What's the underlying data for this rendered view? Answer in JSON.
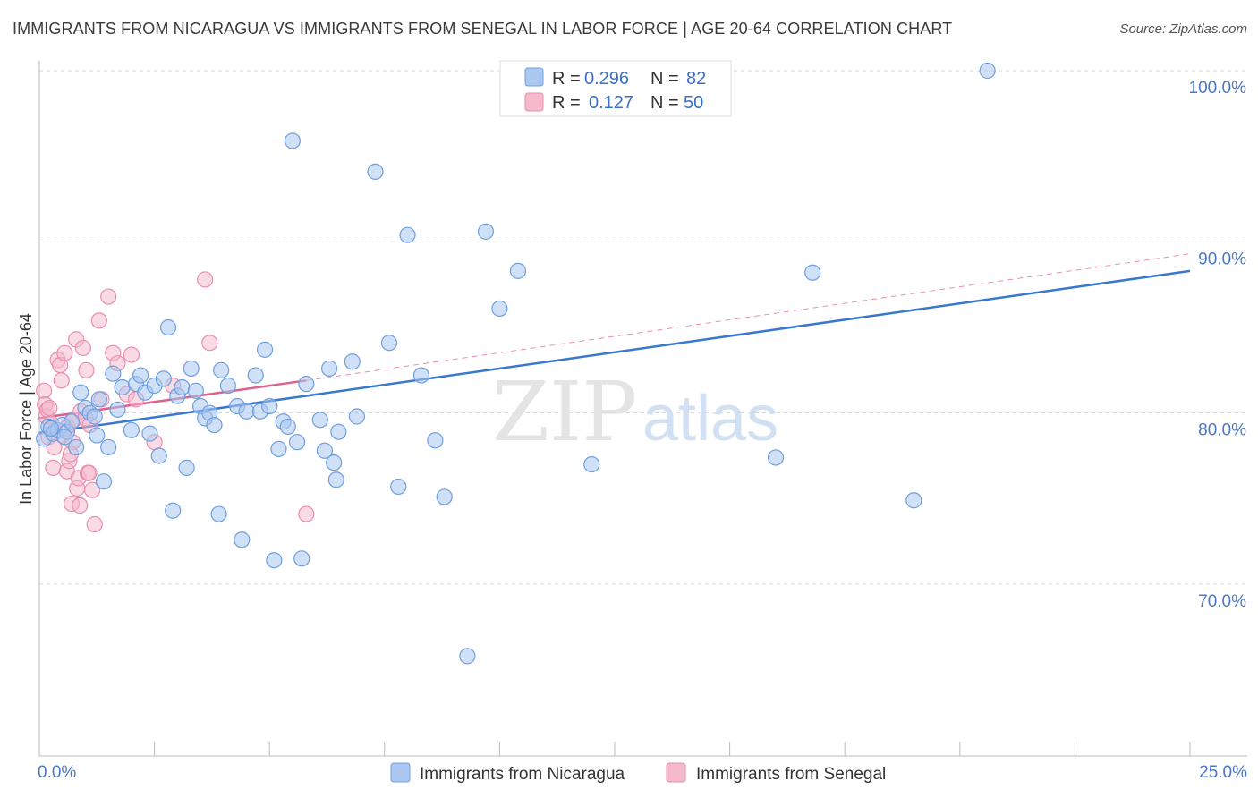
{
  "title": "IMMIGRANTS FROM NICARAGUA VS IMMIGRANTS FROM SENEGAL IN LABOR FORCE | AGE 20-64 CORRELATION CHART",
  "source": "Source: ZipAtlas.com",
  "watermark": {
    "zip": "ZIP",
    "atlas": "atlas"
  },
  "colors": {
    "blue_fill": "#aac8f0",
    "blue_stroke": "#6f9fe0",
    "blue_line": "#3a78d0",
    "pink_fill": "#f6b8cb",
    "pink_stroke": "#e98fab",
    "pink_line": "#e0608c",
    "tick_text": "#4a78c8",
    "grid": "#d8d8d8"
  },
  "legend": {
    "r_label": "R =",
    "n_label": "N =",
    "entries": [
      {
        "series": "Immigrants from Nicaragua",
        "r": "0.296",
        "n": "82"
      },
      {
        "series": "Immigrants from Senegal",
        "r": "0.127",
        "n": "50"
      }
    ]
  },
  "chart_data": {
    "type": "scatter",
    "title": "IMMIGRANTS FROM NICARAGUA VS IMMIGRANTS FROM SENEGAL IN LABOR FORCE | AGE 20-64 CORRELATION CHART",
    "xlabel": "",
    "ylabel": "In Labor Force | Age 20-64",
    "xlim": [
      0.0,
      25.0
    ],
    "ylim": [
      60.0,
      102.0
    ],
    "x_tick_labels": [
      "0.0%",
      "25.0%"
    ],
    "y_ticks": [
      {
        "value": 100,
        "label": "100.0%"
      },
      {
        "value": 90,
        "label": "90.0%"
      },
      {
        "value": 80,
        "label": "80.0%"
      },
      {
        "value": 70,
        "label": "70.0%"
      }
    ],
    "legend_position": "top-center",
    "series": [
      {
        "name": "Immigrants from Nicaragua",
        "color": "blue",
        "points": [
          [
            0.1,
            78.5
          ],
          [
            0.2,
            79.2
          ],
          [
            0.3,
            78.8
          ],
          [
            0.4,
            79.0
          ],
          [
            0.5,
            79.3
          ],
          [
            0.6,
            78.9
          ],
          [
            0.7,
            79.5
          ],
          [
            0.8,
            78.0
          ],
          [
            0.9,
            81.2
          ],
          [
            1.0,
            80.3
          ],
          [
            1.1,
            80.0
          ],
          [
            1.2,
            79.8
          ],
          [
            1.3,
            80.8
          ],
          [
            1.4,
            76.0
          ],
          [
            1.5,
            78.0
          ],
          [
            1.6,
            82.3
          ],
          [
            1.7,
            80.2
          ],
          [
            1.8,
            81.5
          ],
          [
            2.0,
            79.0
          ],
          [
            2.1,
            81.7
          ],
          [
            2.2,
            82.2
          ],
          [
            2.3,
            81.2
          ],
          [
            2.4,
            78.8
          ],
          [
            2.5,
            81.6
          ],
          [
            2.6,
            77.5
          ],
          [
            2.7,
            82.0
          ],
          [
            2.8,
            85.0
          ],
          [
            2.9,
            74.3
          ],
          [
            3.0,
            81.0
          ],
          [
            3.1,
            81.5
          ],
          [
            3.2,
            76.8
          ],
          [
            3.3,
            82.6
          ],
          [
            3.4,
            81.3
          ],
          [
            3.5,
            80.4
          ],
          [
            3.6,
            79.7
          ],
          [
            3.7,
            80.0
          ],
          [
            3.8,
            79.3
          ],
          [
            3.9,
            74.1
          ],
          [
            3.95,
            82.5
          ],
          [
            4.1,
            81.6
          ],
          [
            4.3,
            80.4
          ],
          [
            4.4,
            72.6
          ],
          [
            4.5,
            80.1
          ],
          [
            4.7,
            82.2
          ],
          [
            4.8,
            80.1
          ],
          [
            4.9,
            83.7
          ],
          [
            5.0,
            80.4
          ],
          [
            5.1,
            71.4
          ],
          [
            5.2,
            77.9
          ],
          [
            5.3,
            79.5
          ],
          [
            5.4,
            79.2
          ],
          [
            5.5,
            95.9
          ],
          [
            5.6,
            78.3
          ],
          [
            5.7,
            71.5
          ],
          [
            5.8,
            81.7
          ],
          [
            6.1,
            79.6
          ],
          [
            6.2,
            77.8
          ],
          [
            6.3,
            82.6
          ],
          [
            6.4,
            77.1
          ],
          [
            6.45,
            76.1
          ],
          [
            6.5,
            78.9
          ],
          [
            6.8,
            83.0
          ],
          [
            6.9,
            79.8
          ],
          [
            7.3,
            94.1
          ],
          [
            7.6,
            84.1
          ],
          [
            7.8,
            75.7
          ],
          [
            8.0,
            90.4
          ],
          [
            8.3,
            82.2
          ],
          [
            8.6,
            78.4
          ],
          [
            8.8,
            75.1
          ],
          [
            9.3,
            65.8
          ],
          [
            9.7,
            90.6
          ],
          [
            10.0,
            86.1
          ],
          [
            10.4,
            88.3
          ],
          [
            12.0,
            77.0
          ],
          [
            16.0,
            77.4
          ],
          [
            16.8,
            88.2
          ],
          [
            19.0,
            74.9
          ],
          [
            20.6,
            100.0
          ],
          [
            0.25,
            79.1
          ],
          [
            0.55,
            78.6
          ],
          [
            1.25,
            78.7
          ]
        ]
      },
      {
        "name": "Immigrants from Senegal",
        "color": "pink",
        "points": [
          [
            0.1,
            81.3
          ],
          [
            0.12,
            80.5
          ],
          [
            0.15,
            79.8
          ],
          [
            0.18,
            80.2
          ],
          [
            0.2,
            78.6
          ],
          [
            0.25,
            79.4
          ],
          [
            0.3,
            76.8
          ],
          [
            0.32,
            78.0
          ],
          [
            0.35,
            79.0
          ],
          [
            0.4,
            83.1
          ],
          [
            0.45,
            82.8
          ],
          [
            0.48,
            81.9
          ],
          [
            0.5,
            78.7
          ],
          [
            0.55,
            83.5
          ],
          [
            0.6,
            76.6
          ],
          [
            0.62,
            79.2
          ],
          [
            0.65,
            77.2
          ],
          [
            0.7,
            74.7
          ],
          [
            0.72,
            78.3
          ],
          [
            0.75,
            79.6
          ],
          [
            0.8,
            84.3
          ],
          [
            0.82,
            75.6
          ],
          [
            0.85,
            76.2
          ],
          [
            0.88,
            74.6
          ],
          [
            0.9,
            80.1
          ],
          [
            0.95,
            83.8
          ],
          [
            1.0,
            79.7
          ],
          [
            1.02,
            82.5
          ],
          [
            1.05,
            76.5
          ],
          [
            1.1,
            79.3
          ],
          [
            1.15,
            75.5
          ],
          [
            1.2,
            73.5
          ],
          [
            1.3,
            85.4
          ],
          [
            1.35,
            80.8
          ],
          [
            1.5,
            86.8
          ],
          [
            1.6,
            83.5
          ],
          [
            1.7,
            82.9
          ],
          [
            1.9,
            81.1
          ],
          [
            2.0,
            83.4
          ],
          [
            2.1,
            80.8
          ],
          [
            2.5,
            78.3
          ],
          [
            2.9,
            81.6
          ],
          [
            3.6,
            87.8
          ],
          [
            3.7,
            84.1
          ],
          [
            5.8,
            74.1
          ],
          [
            0.22,
            80.3
          ],
          [
            0.38,
            79.0
          ],
          [
            0.58,
            79.1
          ],
          [
            1.08,
            76.5
          ],
          [
            0.68,
            77.6
          ]
        ]
      }
    ],
    "trend_lines": [
      {
        "series": "Immigrants from Nicaragua",
        "x0": 0.0,
        "y0": 78.8,
        "x1": 25.0,
        "y1": 88.3,
        "style": "solid"
      },
      {
        "series": "Immigrants from Senegal",
        "x0": 0.0,
        "y0": 79.7,
        "x1": 5.8,
        "y1": 81.9,
        "style": "solid"
      },
      {
        "series": "Immigrants from Senegal",
        "x0": 5.8,
        "y0": 81.9,
        "x1": 25.0,
        "y1": 89.3,
        "style": "dashed"
      }
    ]
  }
}
